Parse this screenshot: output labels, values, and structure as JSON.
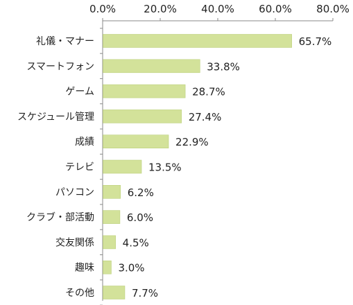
{
  "chart_data": {
    "type": "bar",
    "orientation": "horizontal",
    "title": "",
    "xlabel": "",
    "ylabel": "",
    "xlim": [
      0,
      80
    ],
    "x_ticks": [
      "0.0%",
      "20.0%",
      "40.0%",
      "60.0%",
      "80.0%"
    ],
    "x_axis_position": "top",
    "grid": false,
    "legend": "none",
    "categories": [
      "礼儀・マナー",
      "スマートフォン",
      "ゲーム",
      "スケジュール管理",
      "成績",
      "テレビ",
      "パソコン",
      "クラブ・部活動",
      "交友関係",
      "趣味",
      "その他"
    ],
    "values": [
      65.7,
      33.8,
      28.7,
      27.4,
      22.9,
      13.5,
      6.2,
      6.0,
      4.5,
      3.0,
      7.7
    ],
    "data_labels": [
      "65.7%",
      "33.8%",
      "28.7%",
      "27.4%",
      "22.9%",
      "13.5%",
      "6.2%",
      "6.0%",
      "4.5%",
      "3.0%",
      "7.7%"
    ],
    "colors": {
      "bar": "#d3e29a",
      "bar_edge": "#bcd07c",
      "axis": "#888888"
    }
  }
}
